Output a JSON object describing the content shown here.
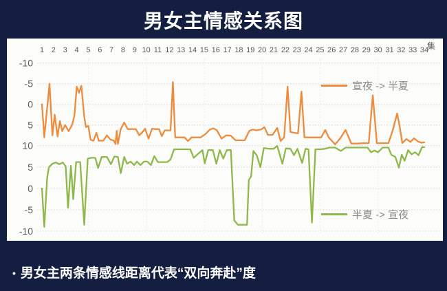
{
  "title": "男女主情感关系图",
  "caption": {
    "bullet": "•",
    "text": "男女主两条情感线距离代表“双向奔赴”度"
  },
  "colors": {
    "background": "#131e40",
    "panel": "#fcfcfa",
    "orange": "#ED8C3E",
    "green": "#8DB84A",
    "grid": "#d4d4d4",
    "tick_text": "#595959",
    "legend_text": "#8a8a8a",
    "title_text": "#ffffff"
  },
  "chart_data": {
    "type": "line",
    "title": "男女主情感关系图",
    "x_axis": {
      "unit_label": "集",
      "ticks": [
        1,
        2,
        3,
        4,
        5,
        6,
        7,
        8,
        9,
        10,
        11,
        12,
        13,
        14,
        15,
        16,
        17,
        18,
        19,
        20,
        21,
        22,
        23,
        24,
        25,
        26,
        27,
        28,
        29,
        30,
        31,
        32,
        33,
        34
      ]
    },
    "y_axis_top": {
      "orientation": "inverted",
      "range": [
        -10,
        10
      ],
      "ticks": [
        -10,
        -5,
        0,
        5,
        10
      ],
      "belongs_to_series": "宣夜 -> 半夏"
    },
    "y_axis_bottom": {
      "orientation": "normal",
      "range": [
        10,
        -10
      ],
      "ticks": [
        5,
        0,
        -5,
        -10
      ],
      "belongs_to_series": "半夏 -> 宣夜"
    },
    "grid": "dotted horizontal at every tick, faint dotted vertical every 5 episodes",
    "legend": [
      {
        "name": "宣夜 -> 半夏",
        "color": "#ED8C3E",
        "position": "top-right"
      },
      {
        "name": "半夏 -> 宣夜",
        "color": "#8DB84A",
        "position": "bottom-right"
      }
    ],
    "series": [
      {
        "name": "宣夜 -> 半夏",
        "color": "#ED8C3E",
        "axis": "top",
        "points": [
          [
            1,
            0
          ],
          [
            1.2,
            8
          ],
          [
            1.65,
            -5
          ],
          [
            1.9,
            7.5
          ],
          [
            2.1,
            2.5
          ],
          [
            2.35,
            7.8
          ],
          [
            2.55,
            4
          ],
          [
            2.75,
            6.5
          ],
          [
            3.0,
            5
          ],
          [
            3.3,
            6.5
          ],
          [
            3.6,
            5
          ],
          [
            3.8,
            2.8
          ],
          [
            4.0,
            -4.3
          ],
          [
            4.2,
            -2.8
          ],
          [
            4.4,
            -4.5
          ],
          [
            4.65,
            3
          ],
          [
            4.8,
            5.5
          ],
          [
            5.0,
            5.2
          ],
          [
            5.2,
            8.6
          ],
          [
            5.45,
            8.8
          ],
          [
            5.7,
            6.9
          ],
          [
            5.9,
            8.8
          ],
          [
            6.3,
            8.8
          ],
          [
            6.6,
            7.5
          ],
          [
            6.9,
            8.5
          ],
          [
            7.2,
            8.8
          ],
          [
            7.35,
            9.6
          ],
          [
            7.45,
            6.4
          ],
          [
            7.55,
            9.6
          ],
          [
            7.8,
            6
          ],
          [
            8.1,
            4.4
          ],
          [
            8.4,
            6
          ],
          [
            8.8,
            6
          ],
          [
            9.1,
            6
          ],
          [
            9.4,
            7.5
          ],
          [
            9.65,
            6.8
          ],
          [
            9.9,
            5.9
          ],
          [
            10.2,
            8.3
          ],
          [
            10.5,
            5.9
          ],
          [
            10.8,
            6
          ],
          [
            11.1,
            6
          ],
          [
            11.35,
            7.7
          ],
          [
            11.6,
            6.3
          ],
          [
            11.9,
            6.3
          ],
          [
            12.1,
            6.3
          ],
          [
            12.3,
            -5.4
          ],
          [
            12.5,
            8
          ],
          [
            12.9,
            8
          ],
          [
            13.3,
            8
          ],
          [
            13.6,
            8.9
          ],
          [
            13.9,
            8
          ],
          [
            14.3,
            8
          ],
          [
            14.7,
            8
          ],
          [
            15.1,
            7.2
          ],
          [
            15.5,
            6.1
          ],
          [
            15.8,
            5.8
          ],
          [
            16.1,
            6.3
          ],
          [
            16.5,
            8.3
          ],
          [
            16.9,
            7.5
          ],
          [
            17.3,
            7.6
          ],
          [
            17.7,
            8.7
          ],
          [
            18.1,
            8.7
          ],
          [
            18.5,
            8.7
          ],
          [
            18.9,
            6.4
          ],
          [
            19.2,
            6.1
          ],
          [
            19.5,
            6.3
          ],
          [
            19.9,
            6.1
          ],
          [
            20.2,
            5.5
          ],
          [
            20.5,
            7.4
          ],
          [
            20.9,
            7.4
          ],
          [
            21.3,
            5.7
          ],
          [
            21.6,
            8.9
          ],
          [
            21.9,
            8
          ],
          [
            22.2,
            -4.3
          ],
          [
            22.45,
            6.7
          ],
          [
            22.8,
            6.9
          ],
          [
            23.1,
            7
          ],
          [
            23.4,
            -3.1
          ],
          [
            23.65,
            8
          ],
          [
            24.1,
            8
          ],
          [
            24.6,
            8
          ],
          [
            25.1,
            8
          ],
          [
            25.45,
            6.2
          ],
          [
            25.75,
            8
          ],
          [
            26.3,
            9.7
          ],
          [
            26.75,
            8.2
          ],
          [
            27.2,
            6.2
          ],
          [
            27.7,
            9.5
          ],
          [
            28.2,
            9.5
          ],
          [
            28.7,
            9.4
          ],
          [
            29.2,
            9.4
          ],
          [
            29.55,
            -2.2
          ],
          [
            29.9,
            9.4
          ],
          [
            30.4,
            9.4
          ],
          [
            30.9,
            9.4
          ],
          [
            31.3,
            6
          ],
          [
            31.65,
            2.2
          ],
          [
            31.85,
            5
          ],
          [
            32.1,
            9.4
          ],
          [
            32.45,
            8.4
          ],
          [
            32.8,
            9.1
          ],
          [
            33.1,
            8.2
          ],
          [
            33.45,
            9
          ],
          [
            33.75,
            9.3
          ],
          [
            34,
            9.2
          ]
        ]
      },
      {
        "name": "半夏 -> 宣夜",
        "color": "#8DB84A",
        "axis": "bottom",
        "points": [
          [
            1,
            0
          ],
          [
            1.2,
            -9
          ],
          [
            1.45,
            2.5
          ],
          [
            1.6,
            5
          ],
          [
            1.9,
            5.8
          ],
          [
            2.2,
            6.1
          ],
          [
            2.5,
            5.7
          ],
          [
            2.8,
            6.1
          ],
          [
            3.05,
            5.2
          ],
          [
            3.25,
            -4.5
          ],
          [
            3.5,
            5.3
          ],
          [
            3.7,
            -2.5
          ],
          [
            3.95,
            6.2
          ],
          [
            4.3,
            6.2
          ],
          [
            4.65,
            -8.5
          ],
          [
            4.95,
            7
          ],
          [
            5.25,
            7.2
          ],
          [
            5.6,
            7.2
          ],
          [
            5.85,
            4.8
          ],
          [
            6.15,
            7.4
          ],
          [
            6.6,
            7.4
          ],
          [
            6.95,
            5.7
          ],
          [
            7.25,
            7.5
          ],
          [
            7.55,
            7.4
          ],
          [
            7.8,
            3.6
          ],
          [
            8.1,
            7.4
          ],
          [
            8.35,
            5.8
          ],
          [
            8.65,
            6.3
          ],
          [
            8.95,
            5.5
          ],
          [
            9.2,
            6.3
          ],
          [
            9.5,
            5.5
          ],
          [
            9.8,
            6.3
          ],
          [
            10.1,
            6.3
          ],
          [
            10.4,
            5.5
          ],
          [
            10.7,
            7.6
          ],
          [
            11.0,
            6.2
          ],
          [
            11.4,
            6.2
          ],
          [
            11.8,
            6.2
          ],
          [
            12.1,
            6.8
          ],
          [
            12.4,
            9.2
          ],
          [
            12.9,
            9.2
          ],
          [
            13.4,
            9.2
          ],
          [
            13.8,
            9.2
          ],
          [
            14.1,
            7.2
          ],
          [
            14.5,
            8.2
          ],
          [
            14.85,
            9
          ],
          [
            15.05,
            5.9
          ],
          [
            15.35,
            9
          ],
          [
            15.75,
            9
          ],
          [
            16.05,
            5.8
          ],
          [
            16.35,
            9
          ],
          [
            16.65,
            7
          ],
          [
            16.95,
            9
          ],
          [
            17.3,
            9
          ],
          [
            17.6,
            -7.5
          ],
          [
            17.9,
            -8.5
          ],
          [
            18.3,
            -8.5
          ],
          [
            18.7,
            -8.5
          ],
          [
            18.85,
            2
          ],
          [
            19.05,
            2.8
          ],
          [
            19.25,
            8.8
          ],
          [
            19.55,
            7.7
          ],
          [
            19.85,
            5
          ],
          [
            20.15,
            9.5
          ],
          [
            20.6,
            9.3
          ],
          [
            21.0,
            9.3
          ],
          [
            21.3,
            10
          ],
          [
            21.75,
            5.8
          ],
          [
            22.05,
            9.4
          ],
          [
            22.45,
            9.3
          ],
          [
            22.75,
            7.8
          ],
          [
            23.05,
            9.3
          ],
          [
            23.45,
            6
          ],
          [
            23.75,
            9.3
          ],
          [
            24.0,
            9.2
          ],
          [
            24.3,
            -8
          ],
          [
            24.6,
            9.2
          ],
          [
            25.0,
            9.2
          ],
          [
            25.4,
            9.3
          ],
          [
            25.8,
            9.6
          ],
          [
            26.3,
            9.6
          ],
          [
            26.8,
            8.8
          ],
          [
            27.2,
            9.6
          ],
          [
            27.7,
            9.6
          ],
          [
            28.2,
            9.6
          ],
          [
            28.7,
            9.6
          ],
          [
            29.1,
            9.6
          ],
          [
            29.4,
            8.5
          ],
          [
            29.7,
            8.9
          ],
          [
            30.0,
            8.5
          ],
          [
            30.4,
            9.6
          ],
          [
            30.9,
            9.6
          ],
          [
            31.15,
            7.9
          ],
          [
            31.5,
            7.4
          ],
          [
            31.8,
            4.9
          ],
          [
            32.05,
            7.9
          ],
          [
            32.3,
            6.5
          ],
          [
            32.6,
            9
          ],
          [
            32.9,
            8
          ],
          [
            33.2,
            8.5
          ],
          [
            33.5,
            7.8
          ],
          [
            33.8,
            9.7
          ],
          [
            34,
            9.7
          ]
        ]
      }
    ]
  }
}
